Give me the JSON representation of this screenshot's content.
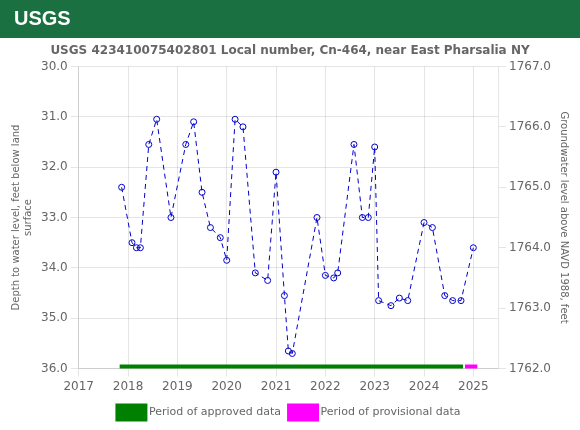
{
  "chart_data": {
    "type": "line",
    "title": "USGS 423410075402801 Local number, Cn-464, near East Pharsalia NY",
    "annotations": [
      {
        "text": "USGS",
        "color": "#1a7040"
      }
    ],
    "ylabel": "Depth to water level, feet below land\nsurface",
    "y2label": "Groundwater level above NAVD 1988, feet",
    "x": [
      2017.87,
      2018.08,
      2018.17,
      2018.25,
      2018.42,
      2018.58,
      2018.87,
      2019.17,
      2019.33,
      2019.5,
      2019.67,
      2019.87,
      2020.0,
      2020.17,
      2020.33,
      2020.58,
      2020.83,
      2021.0,
      2021.17,
      2021.25,
      2021.33,
      2021.83,
      2022.0,
      2022.17,
      2022.25,
      2022.58,
      2022.75,
      2022.87,
      2023.0,
      2023.08,
      2023.33,
      2023.5,
      2023.67,
      2024.0,
      2024.17,
      2024.42,
      2024.58,
      2024.75,
      2025.0
    ],
    "series": [
      {
        "color": "#0000cc",
        "line_style": "dashed",
        "marker": "circle",
        "values": [
          32.4,
          33.5,
          33.6,
          33.6,
          31.55,
          31.05,
          33.0,
          31.55,
          31.1,
          32.5,
          33.2,
          33.4,
          33.85,
          31.05,
          31.2,
          34.1,
          34.25,
          32.1,
          34.55,
          35.65,
          35.7,
          33.0,
          34.15,
          34.2,
          34.1,
          31.55,
          33.0,
          33.0,
          31.6,
          34.65,
          34.75,
          34.6,
          34.65,
          33.1,
          33.2,
          34.55,
          34.65,
          34.65,
          33.6
        ]
      }
    ],
    "periods": [
      {
        "name": "Period of approved data",
        "color": "#008000",
        "start": 2017.83,
        "end": 2024.79,
        "y": 36.0
      },
      {
        "name": "Period of provisional data",
        "color": "#ff00ff",
        "start": 2024.83,
        "end": 2025.08,
        "y": 36.0
      }
    ],
    "xlim": [
      2017.0,
      2025.5
    ],
    "xticks": [
      2017,
      2018,
      2019,
      2020,
      2021,
      2022,
      2023,
      2024,
      2025
    ],
    "ylim": [
      36.0,
      30.0
    ],
    "yticks": [
      {
        "value": 30.0,
        "label": "30.0"
      },
      {
        "value": 31.0,
        "label": "31.0"
      },
      {
        "value": 32.0,
        "label": "32.0"
      },
      {
        "value": 33.0,
        "label": "33.0"
      },
      {
        "value": 34.0,
        "label": "34.0"
      },
      {
        "value": 35.0,
        "label": "35.0"
      },
      {
        "value": 36.0,
        "label": "36.0"
      }
    ],
    "y2lim": [
      1762.0,
      1767.0
    ],
    "y2ticks": [
      {
        "value": 1762.0,
        "label": "1762.0"
      },
      {
        "value": 1763.0,
        "label": "1763.0"
      },
      {
        "value": 1764.0,
        "label": "1764.0"
      },
      {
        "value": 1765.0,
        "label": "1765.0"
      },
      {
        "value": 1766.0,
        "label": "1766.0"
      },
      {
        "value": 1767.0,
        "label": "1767.0"
      }
    ],
    "grid": true,
    "legend": "bottom"
  }
}
